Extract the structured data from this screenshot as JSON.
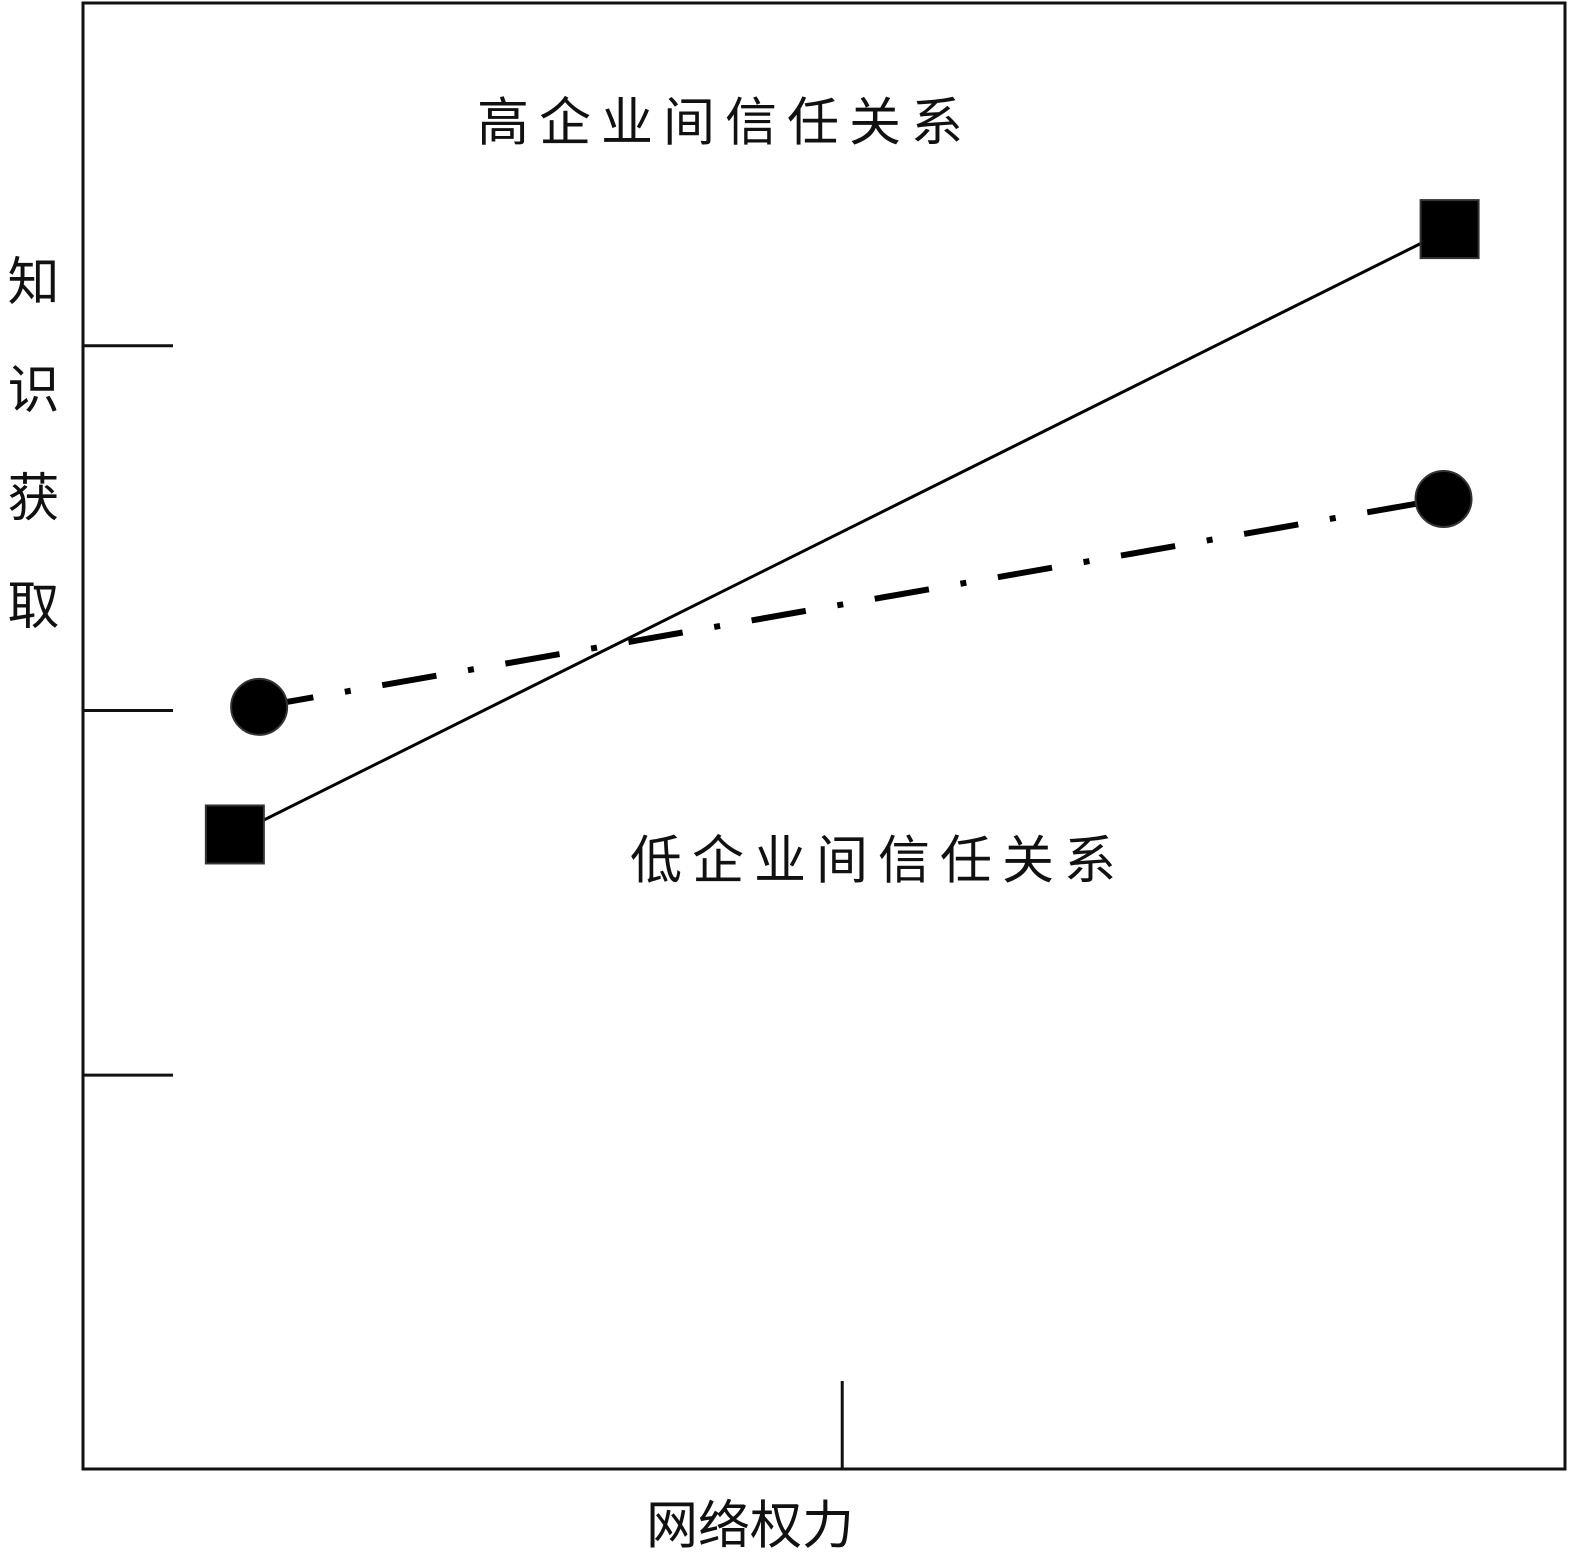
{
  "chart_data": {
    "type": "line",
    "x_label": "网络权力",
    "y_label": "知识获取",
    "xlim": [
      -1.25,
      1.19
    ],
    "xticks": [
      0
    ],
    "ylim": [
      -2.08,
      1.94
    ],
    "yticks": [
      -1,
      0,
      1
    ],
    "series": [
      {
        "name": "高企业间信任关系",
        "color": "#000000",
        "dash": "solid",
        "marker": "square",
        "x": [
          -1,
          1
        ],
        "values": [
          -0.34,
          1.32
        ]
      },
      {
        "name": "低企业间信任关系",
        "color": "#000000",
        "dash": "dashdot",
        "marker": "circle",
        "x": [
          -0.96,
          0.99
        ],
        "values": [
          0.01,
          0.58
        ]
      }
    ]
  }
}
